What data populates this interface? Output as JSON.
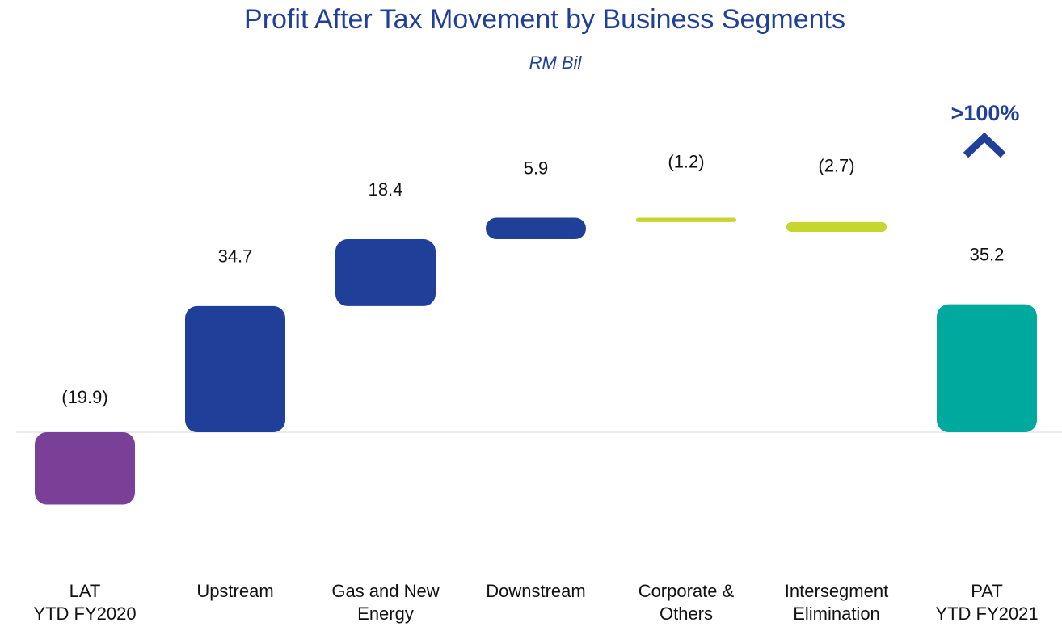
{
  "chart_data": {
    "type": "waterfall",
    "title": "Profit After Tax Movement by Business Segments",
    "subtitle": "RM Bil",
    "categories": [
      [
        "LAT",
        "YTD FY2020"
      ],
      [
        "Upstream"
      ],
      [
        "Gas and New",
        "Energy"
      ],
      [
        "Downstream"
      ],
      [
        "Corporate &",
        "Others"
      ],
      [
        "Intersegment",
        "Elimination"
      ],
      [
        "PAT",
        "YTD FY2021"
      ]
    ],
    "values": [
      -19.9,
      34.7,
      18.4,
      5.9,
      -1.2,
      -2.7,
      35.2
    ],
    "value_labels": [
      "(19.9)",
      "34.7",
      "18.4",
      "5.9",
      "(1.2)",
      "(2.7)",
      "35.2"
    ],
    "colors": [
      "#7a3f96",
      "#1f3f99",
      "#1f3f99",
      "#1f3f99",
      "#c5d62e",
      "#c5d62e",
      "#00a99d"
    ],
    "ylim": [
      -26,
      90
    ],
    "annotation": ">100%"
  }
}
